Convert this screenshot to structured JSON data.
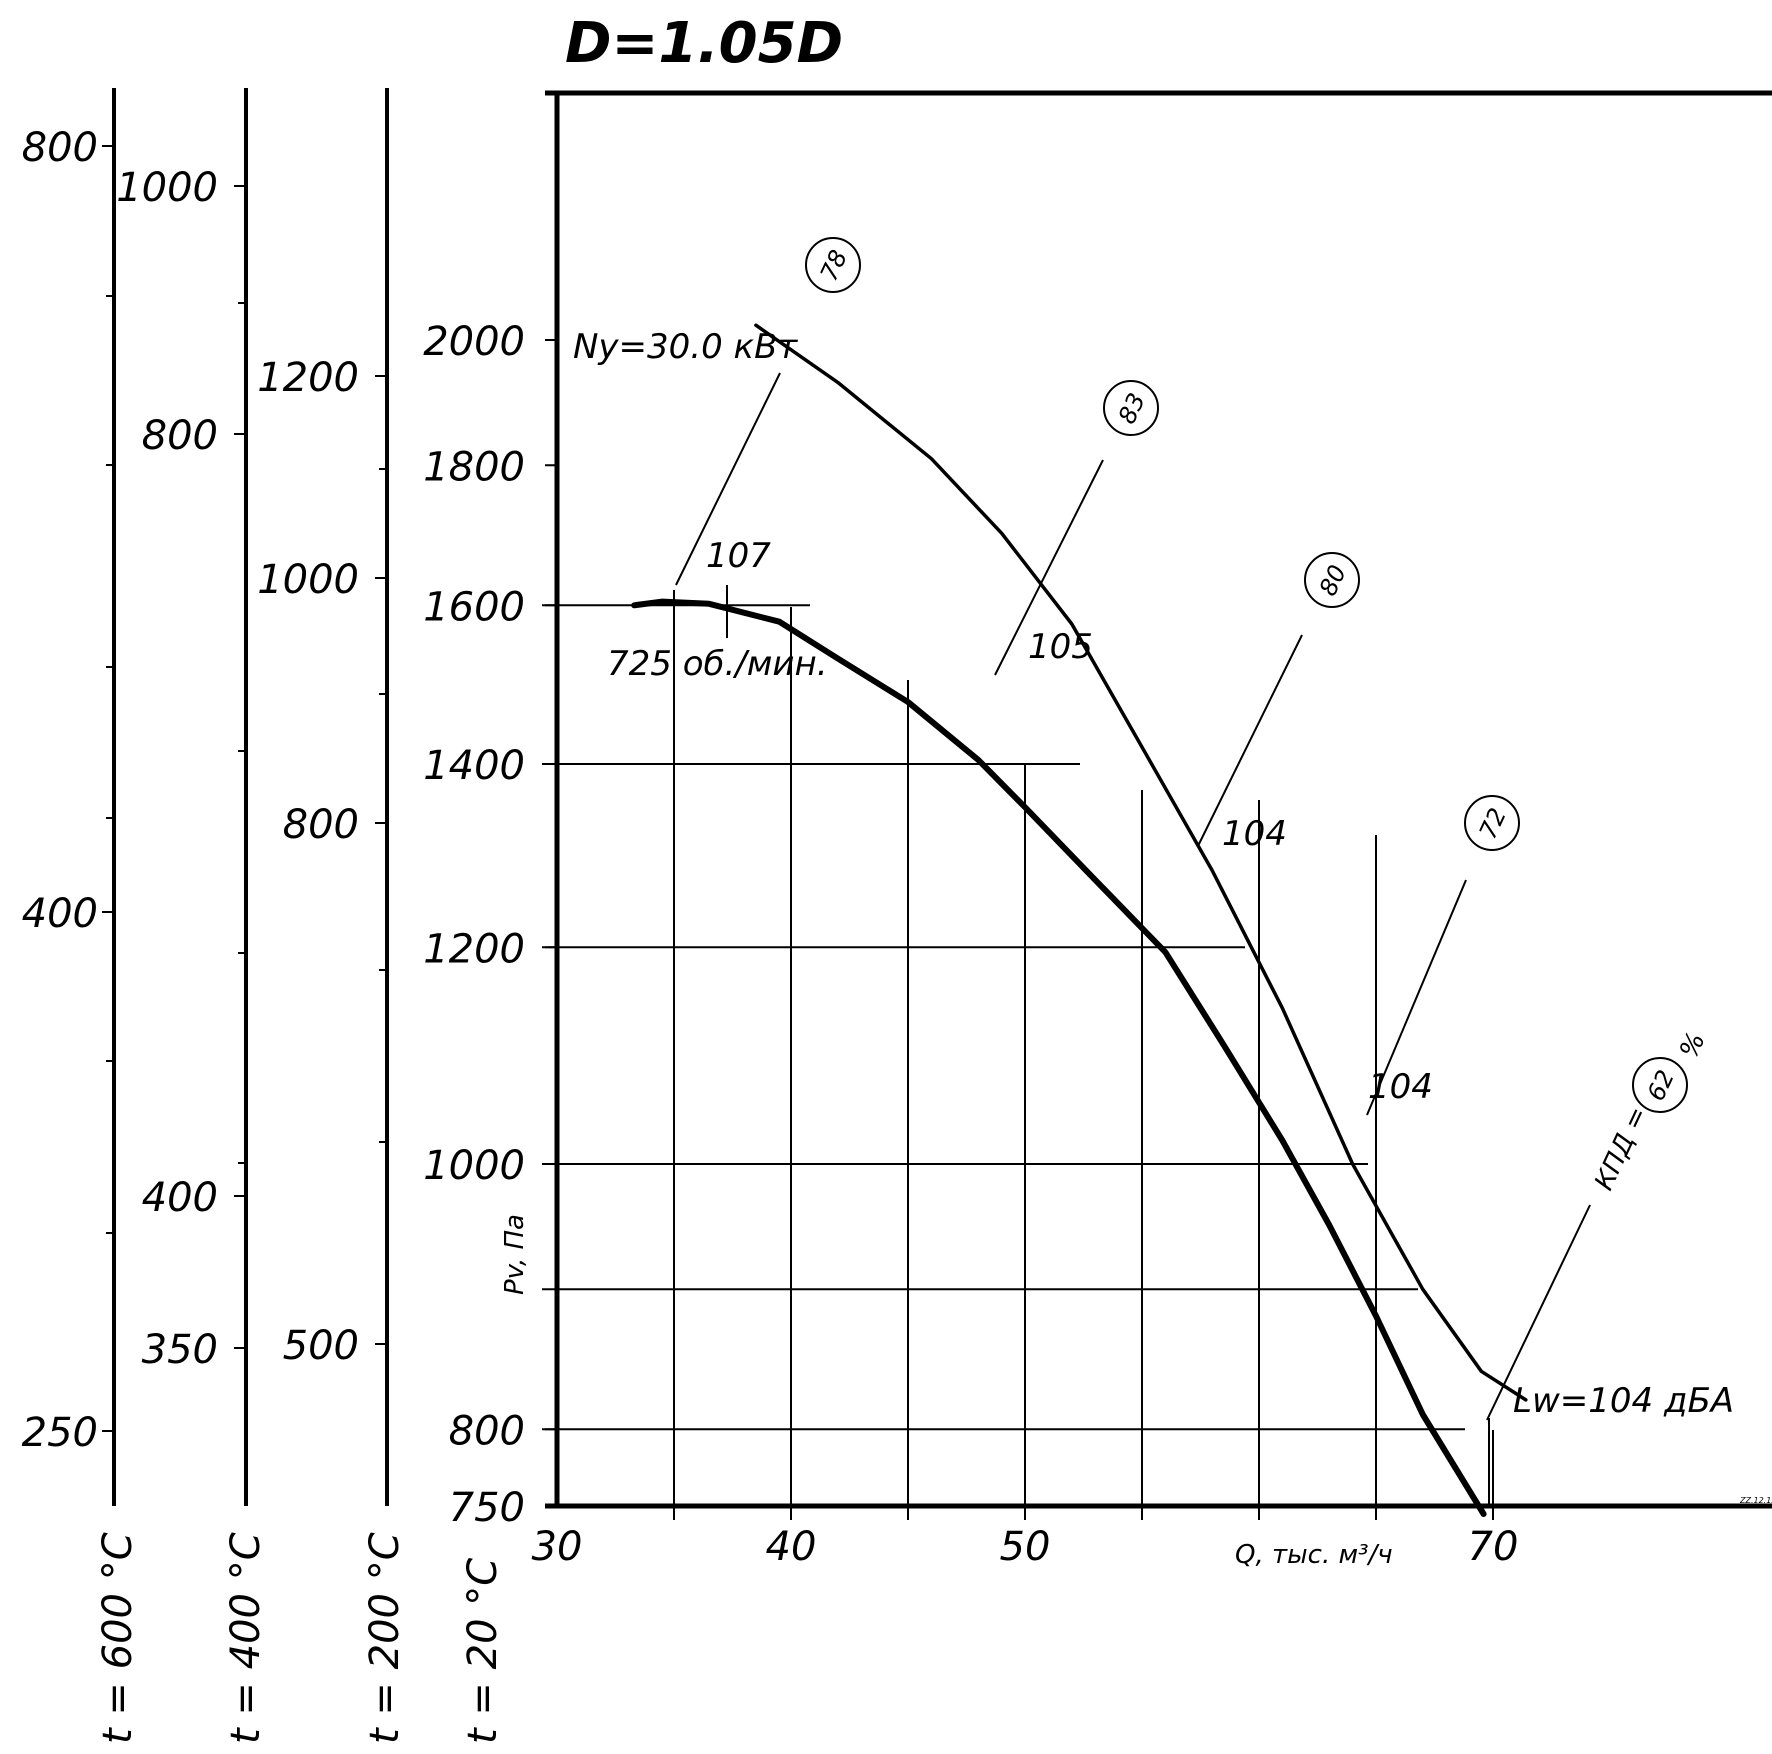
{
  "chart_data": {
    "type": "line",
    "title": "D=1.05D",
    "xlabel": "Q, тыс. м³/ч",
    "ylabel": "Pv, Па",
    "x_axis": {
      "range": [
        30,
        77
      ],
      "tick_labels": [
        "30",
        "40",
        "50",
        "70"
      ],
      "gridlines": [
        35,
        40,
        45,
        50,
        55,
        60,
        65,
        70
      ]
    },
    "y_axis": {
      "range": [
        750,
        2200
      ],
      "scale": "log",
      "tick_labels": [
        "750",
        "800",
        "1000",
        "1200",
        "1400",
        "1600",
        "1800",
        "2000"
      ],
      "gridlines": [
        800,
        900,
        1000,
        1200,
        1400,
        1600
      ]
    },
    "temp_scales": [
      {
        "label": "t = 600 °C",
        "values": [
          "800",
          "400",
          "250"
        ]
      },
      {
        "label": "t = 400 °C",
        "values": [
          "1000",
          "800",
          "400",
          "350"
        ]
      },
      {
        "label": "t = 200 °C",
        "values": [
          "1200",
          "1000",
          "800",
          "500"
        ]
      },
      {
        "label": "t = 20 °C",
        "values": []
      }
    ],
    "series": [
      {
        "name": "725 об./мин.",
        "points": [
          [
            33.3,
            1600
          ],
          [
            34.5,
            1605
          ],
          [
            36.5,
            1602
          ],
          [
            39.5,
            1578
          ],
          [
            42,
            1530
          ],
          [
            45,
            1475
          ],
          [
            48,
            1405
          ],
          [
            50,
            1350
          ],
          [
            53,
            1270
          ],
          [
            56,
            1195
          ],
          [
            58.5,
            1105
          ],
          [
            61,
            1020
          ],
          [
            63,
            950
          ],
          [
            65,
            880
          ],
          [
            67,
            810
          ],
          [
            69.6,
            745
          ]
        ]
      },
      {
        "name": "",
        "points": [
          [
            38.5,
            2025
          ],
          [
            42,
            1930
          ],
          [
            46,
            1810
          ],
          [
            49,
            1700
          ],
          [
            52,
            1575
          ],
          [
            55,
            1420
          ],
          [
            58,
            1280
          ],
          [
            61,
            1140
          ],
          [
            64,
            1000
          ],
          [
            67,
            900
          ],
          [
            69.5,
            840
          ],
          [
            71.4,
            820
          ]
        ]
      }
    ],
    "efficiency_lines": [
      {
        "label": "78",
        "sound": "107"
      },
      {
        "label": "83",
        "sound": "105"
      },
      {
        "label": "80",
        "sound": "104"
      },
      {
        "label": "72",
        "sound": "104"
      },
      {
        "label": "62",
        "sound": "104"
      }
    ],
    "annotations": {
      "power": "Ny=30.0 кВт",
      "speed": "725 об./мин.",
      "efficiency_prefix": "КПД =",
      "efficiency_unit": "%",
      "sound_level": "Lw=104 дБА",
      "corner_code": "ZZ.12.12"
    }
  }
}
